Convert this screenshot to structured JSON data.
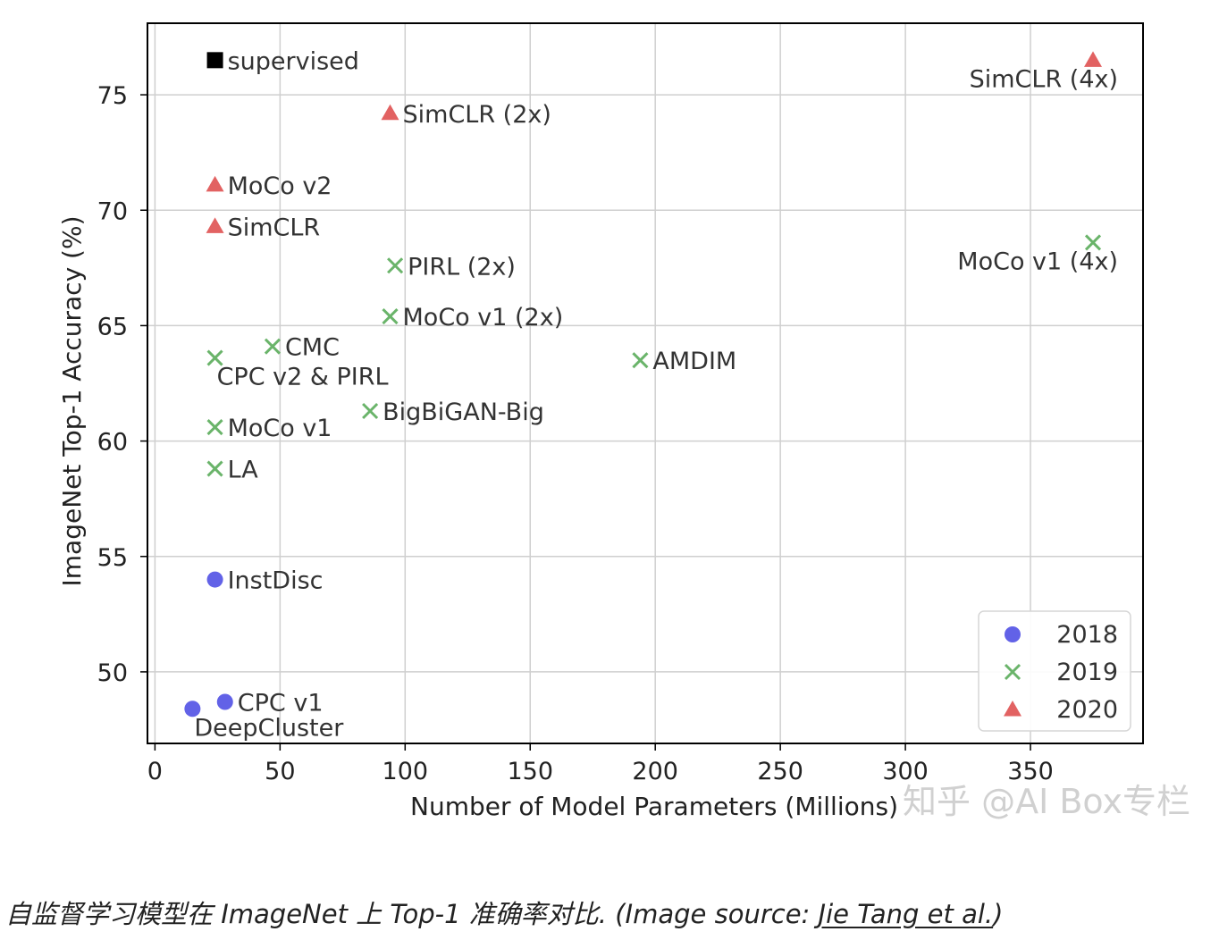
{
  "chart_data": {
    "type": "scatter",
    "title": "",
    "xlabel": "Number of Model Parameters (Millions)",
    "ylabel": "ImageNet Top-1 Accuracy (%)",
    "xlim": [
      -3,
      395
    ],
    "ylim": [
      46.9,
      78.1
    ],
    "xticks": [
      0,
      50,
      100,
      150,
      200,
      250,
      300,
      350
    ],
    "yticks": [
      50,
      55,
      60,
      65,
      70,
      75
    ],
    "grid": true,
    "legend_position": "lower-right",
    "legend": [
      {
        "label": "2018",
        "marker": "circle",
        "color": "#5a5ae6"
      },
      {
        "label": "2019",
        "marker": "x",
        "color": "#6ab46a"
      },
      {
        "label": "2020",
        "marker": "triangle",
        "color": "#e05a5a"
      }
    ],
    "points": [
      {
        "label": "supervised",
        "x": 24,
        "y": 76.5,
        "group": "supervised",
        "label_anchor": "right"
      },
      {
        "label": "SimCLR (4x)",
        "x": 375,
        "y": 76.5,
        "group": "2020",
        "label_anchor": "below-left"
      },
      {
        "label": "SimCLR (2x)",
        "x": 94,
        "y": 74.2,
        "group": "2020",
        "label_anchor": "right"
      },
      {
        "label": "MoCo v2",
        "x": 24,
        "y": 71.1,
        "group": "2020",
        "label_anchor": "right"
      },
      {
        "label": "SimCLR",
        "x": 24,
        "y": 69.3,
        "group": "2020",
        "label_anchor": "right"
      },
      {
        "label": "MoCo v1 (4x)",
        "x": 375,
        "y": 68.6,
        "group": "2019",
        "label_anchor": "below-left"
      },
      {
        "label": "PIRL (2x)",
        "x": 96,
        "y": 67.6,
        "group": "2019",
        "label_anchor": "right"
      },
      {
        "label": "MoCo v1 (2x)",
        "x": 94,
        "y": 65.4,
        "group": "2019",
        "label_anchor": "right"
      },
      {
        "label": "CMC",
        "x": 47,
        "y": 64.1,
        "group": "2019",
        "label_anchor": "right"
      },
      {
        "label": "CPC v2 & PIRL",
        "x": 24,
        "y": 63.6,
        "group": "2019",
        "label_anchor": "below-right"
      },
      {
        "label": "AMDIM",
        "x": 194,
        "y": 63.5,
        "group": "2019",
        "label_anchor": "right"
      },
      {
        "label": "BigBiGAN-Big",
        "x": 86,
        "y": 61.3,
        "group": "2019",
        "label_anchor": "right"
      },
      {
        "label": "MoCo v1",
        "x": 24,
        "y": 60.6,
        "group": "2019",
        "label_anchor": "right"
      },
      {
        "label": "LA",
        "x": 24,
        "y": 58.8,
        "group": "2019",
        "label_anchor": "right"
      },
      {
        "label": "InstDisc",
        "x": 24,
        "y": 54.0,
        "group": "2018",
        "label_anchor": "right"
      },
      {
        "label": "CPC v1",
        "x": 28,
        "y": 48.7,
        "group": "2018",
        "label_anchor": "right"
      },
      {
        "label": "DeepCluster",
        "x": 15,
        "y": 48.4,
        "group": "2018",
        "label_anchor": "below-right"
      }
    ]
  },
  "colors": {
    "2018": "#5a5ae6",
    "2019": "#6ab46a",
    "2020": "#e05a5a",
    "supervised": "#000000"
  },
  "watermark": "知乎 @AI Box专栏",
  "caption": {
    "text": "自监督学习模型在 ImageNet 上 Top-1 准确率对比. (Image source: ",
    "link_text": "Jie Tang et al.",
    "suffix": ")"
  }
}
